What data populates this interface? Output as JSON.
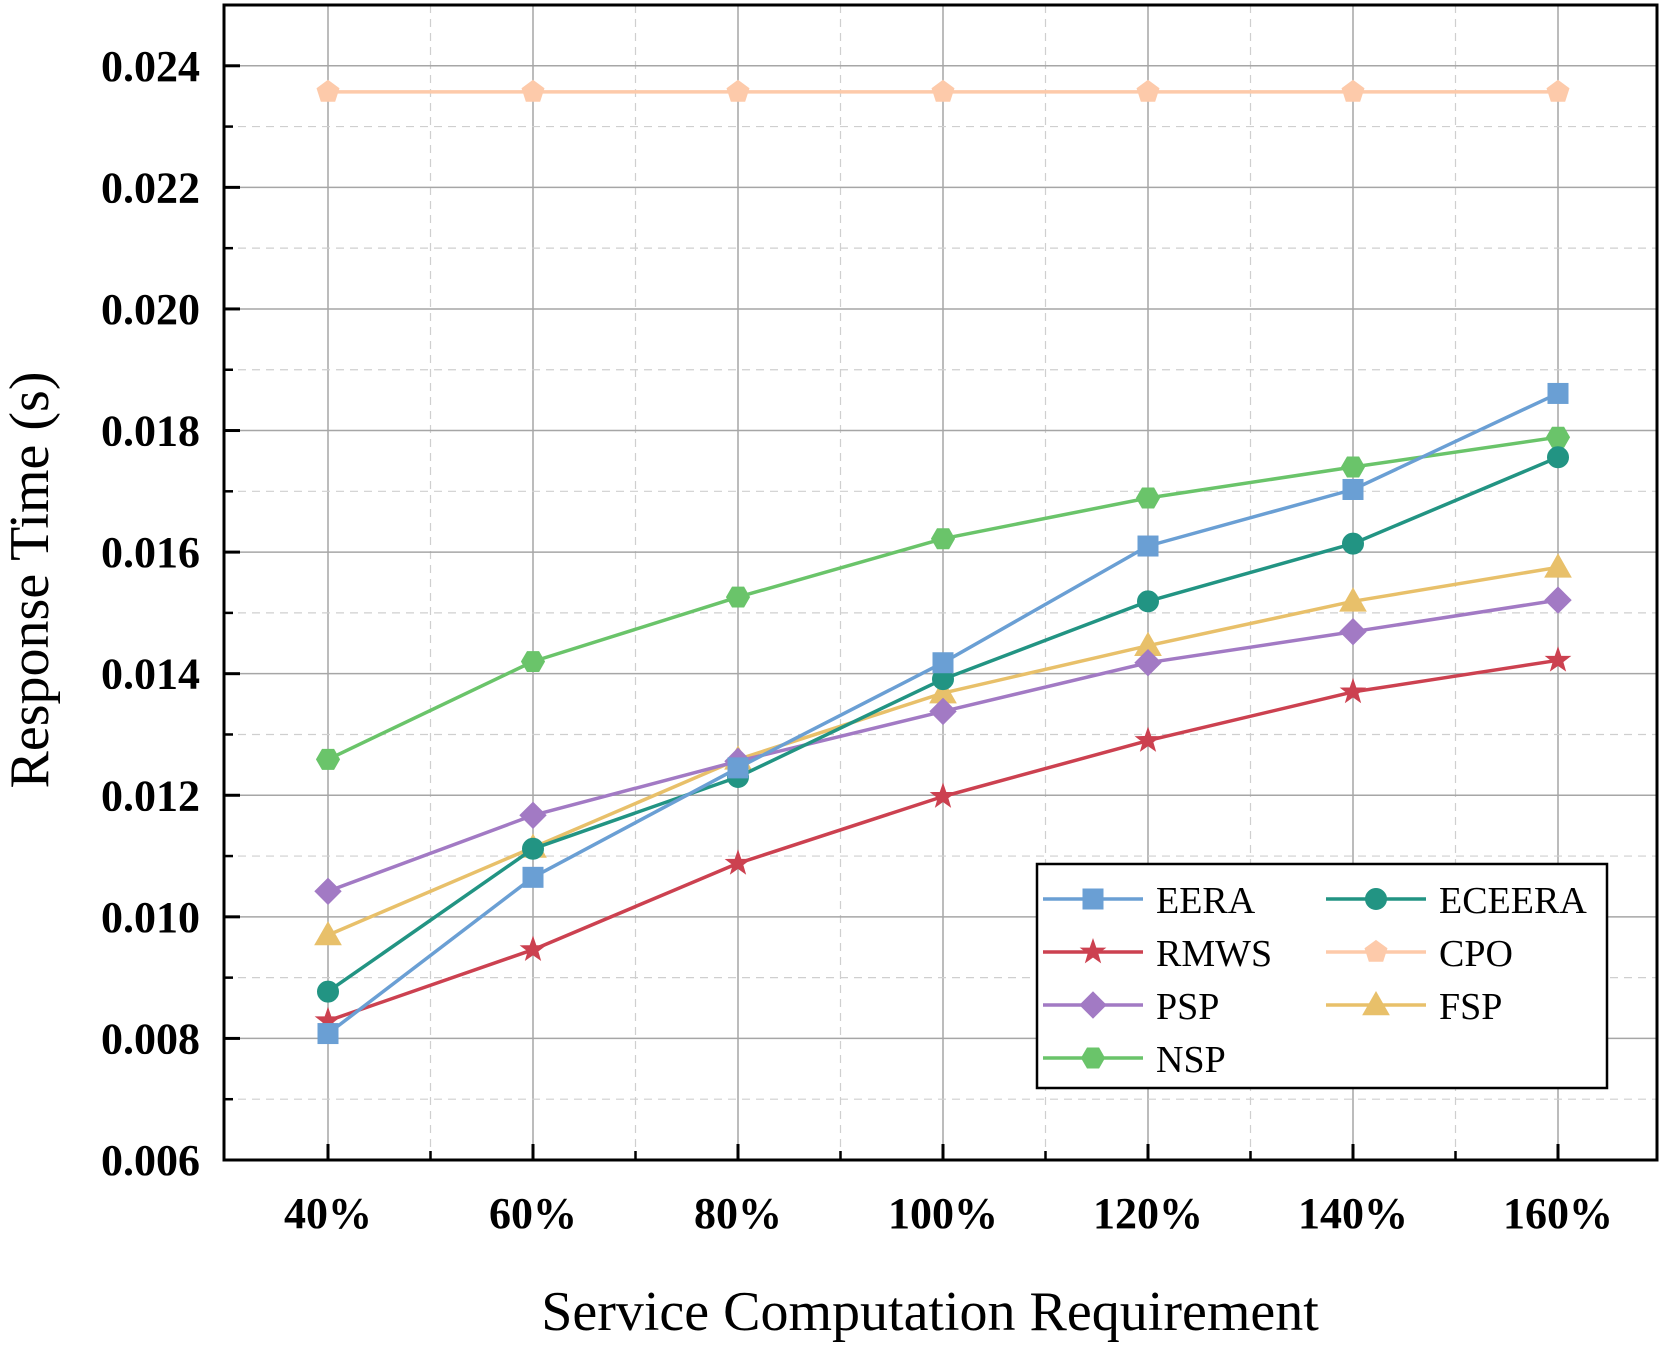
{
  "chart_data": {
    "type": "line",
    "xlabel": "Service Computation Requirement",
    "ylabel": "Response Time (s)",
    "categories": [
      "40%",
      "60%",
      "80%",
      "100%",
      "120%",
      "140%",
      "160%"
    ],
    "ylim": [
      0.006,
      0.025
    ],
    "yticks": [
      "0.006",
      "0.008",
      "0.010",
      "0.012",
      "0.014",
      "0.016",
      "0.018",
      "0.020",
      "0.022",
      "0.024"
    ],
    "grid": true,
    "legend_position": "bottom-right",
    "series": [
      {
        "name": "EERA",
        "color": "#6a9fd4",
        "marker": "square",
        "values": [
          0.00808,
          0.01065,
          0.01245,
          0.01418,
          0.0161,
          0.01703,
          0.01861
        ]
      },
      {
        "name": "ECEERA",
        "color": "#229483",
        "marker": "circle",
        "values": [
          0.00877,
          0.01112,
          0.0123,
          0.01391,
          0.01519,
          0.01614,
          0.01756
        ]
      },
      {
        "name": "RMWS",
        "color": "#cc4150",
        "marker": "star",
        "values": [
          0.00829,
          0.00946,
          0.01088,
          0.01198,
          0.0129,
          0.0137,
          0.01422
        ]
      },
      {
        "name": "CPO",
        "color": "#fdcaaa",
        "marker": "pentagon",
        "values": [
          0.02357,
          0.02357,
          0.02357,
          0.02357,
          0.02357,
          0.02357,
          0.02357
        ]
      },
      {
        "name": "PSP",
        "color": "#a27ac4",
        "marker": "diamond",
        "values": [
          0.01042,
          0.01167,
          0.01256,
          0.01338,
          0.01418,
          0.01469,
          0.01521
        ]
      },
      {
        "name": "FSP",
        "color": "#e8c06a",
        "marker": "triangle",
        "values": [
          0.0097,
          0.01114,
          0.01259,
          0.01368,
          0.01446,
          0.01519,
          0.01575
        ]
      },
      {
        "name": "NSP",
        "color": "#6ac46a",
        "marker": "hexagon",
        "values": [
          0.01259,
          0.0142,
          0.01526,
          0.01622,
          0.01689,
          0.0174,
          0.01789
        ]
      }
    ]
  }
}
